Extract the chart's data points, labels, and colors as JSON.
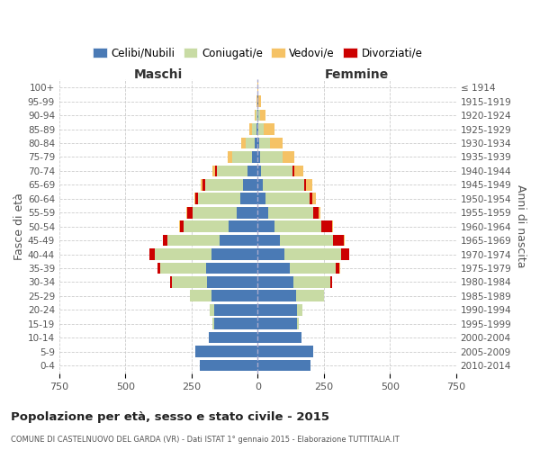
{
  "age_groups": [
    "0-4",
    "5-9",
    "10-14",
    "15-19",
    "20-24",
    "25-29",
    "30-34",
    "35-39",
    "40-44",
    "45-49",
    "50-54",
    "55-59",
    "60-64",
    "65-69",
    "70-74",
    "75-79",
    "80-84",
    "85-89",
    "90-94",
    "95-99",
    "100+"
  ],
  "birth_years": [
    "2010-2014",
    "2005-2009",
    "2000-2004",
    "1995-1999",
    "1990-1994",
    "1985-1989",
    "1980-1984",
    "1975-1979",
    "1970-1974",
    "1965-1969",
    "1960-1964",
    "1955-1959",
    "1950-1954",
    "1945-1949",
    "1940-1944",
    "1935-1939",
    "1930-1934",
    "1925-1929",
    "1920-1924",
    "1915-1919",
    "≤ 1914"
  ],
  "colors": {
    "celibi": "#4a7ab5",
    "coniugati": "#c8dba4",
    "vedovi": "#f5c265",
    "divorziati": "#cc0000"
  },
  "maschi": {
    "celibi": [
      220,
      235,
      185,
      165,
      165,
      175,
      190,
      195,
      175,
      145,
      110,
      80,
      65,
      55,
      40,
      22,
      10,
      5,
      2,
      1,
      0
    ],
    "coniugati": [
      0,
      0,
      0,
      5,
      15,
      80,
      135,
      175,
      215,
      195,
      170,
      165,
      160,
      145,
      115,
      75,
      35,
      15,
      5,
      1,
      0
    ],
    "vedovi": [
      0,
      0,
      0,
      0,
      0,
      0,
      0,
      0,
      1,
      2,
      3,
      4,
      5,
      8,
      12,
      15,
      18,
      12,
      5,
      2,
      0
    ],
    "divorziati": [
      0,
      0,
      0,
      0,
      0,
      2,
      5,
      8,
      18,
      18,
      15,
      20,
      10,
      8,
      5,
      0,
      0,
      0,
      0,
      0,
      0
    ]
  },
  "femmine": {
    "celibi": [
      200,
      210,
      165,
      150,
      150,
      145,
      135,
      120,
      100,
      85,
      65,
      40,
      30,
      20,
      12,
      8,
      5,
      3,
      2,
      1,
      0
    ],
    "coniugati": [
      0,
      0,
      0,
      5,
      20,
      105,
      140,
      175,
      215,
      200,
      175,
      170,
      165,
      155,
      120,
      85,
      40,
      20,
      8,
      3,
      0
    ],
    "vedovi": [
      0,
      0,
      0,
      0,
      0,
      0,
      0,
      1,
      2,
      4,
      6,
      8,
      15,
      22,
      35,
      45,
      50,
      40,
      20,
      8,
      2
    ],
    "divorziati": [
      0,
      0,
      0,
      0,
      0,
      2,
      5,
      15,
      30,
      40,
      40,
      20,
      10,
      8,
      5,
      2,
      0,
      0,
      0,
      0,
      0
    ]
  },
  "xlim": 750,
  "title": "Popolazione per età, sesso e stato civile - 2015",
  "subtitle": "COMUNE DI CASTELNUOVO DEL GARDA (VR) - Dati ISTAT 1° gennaio 2015 - Elaborazione TUTTITALIA.IT",
  "ylabel": "Fasce di età",
  "ylabel_right": "Anni di nascita",
  "legend_labels": [
    "Celibi/Nubili",
    "Coniugati/e",
    "Vedovi/e",
    "Divorziati/e"
  ],
  "background_color": "#ffffff",
  "grid_color": "#cccccc"
}
